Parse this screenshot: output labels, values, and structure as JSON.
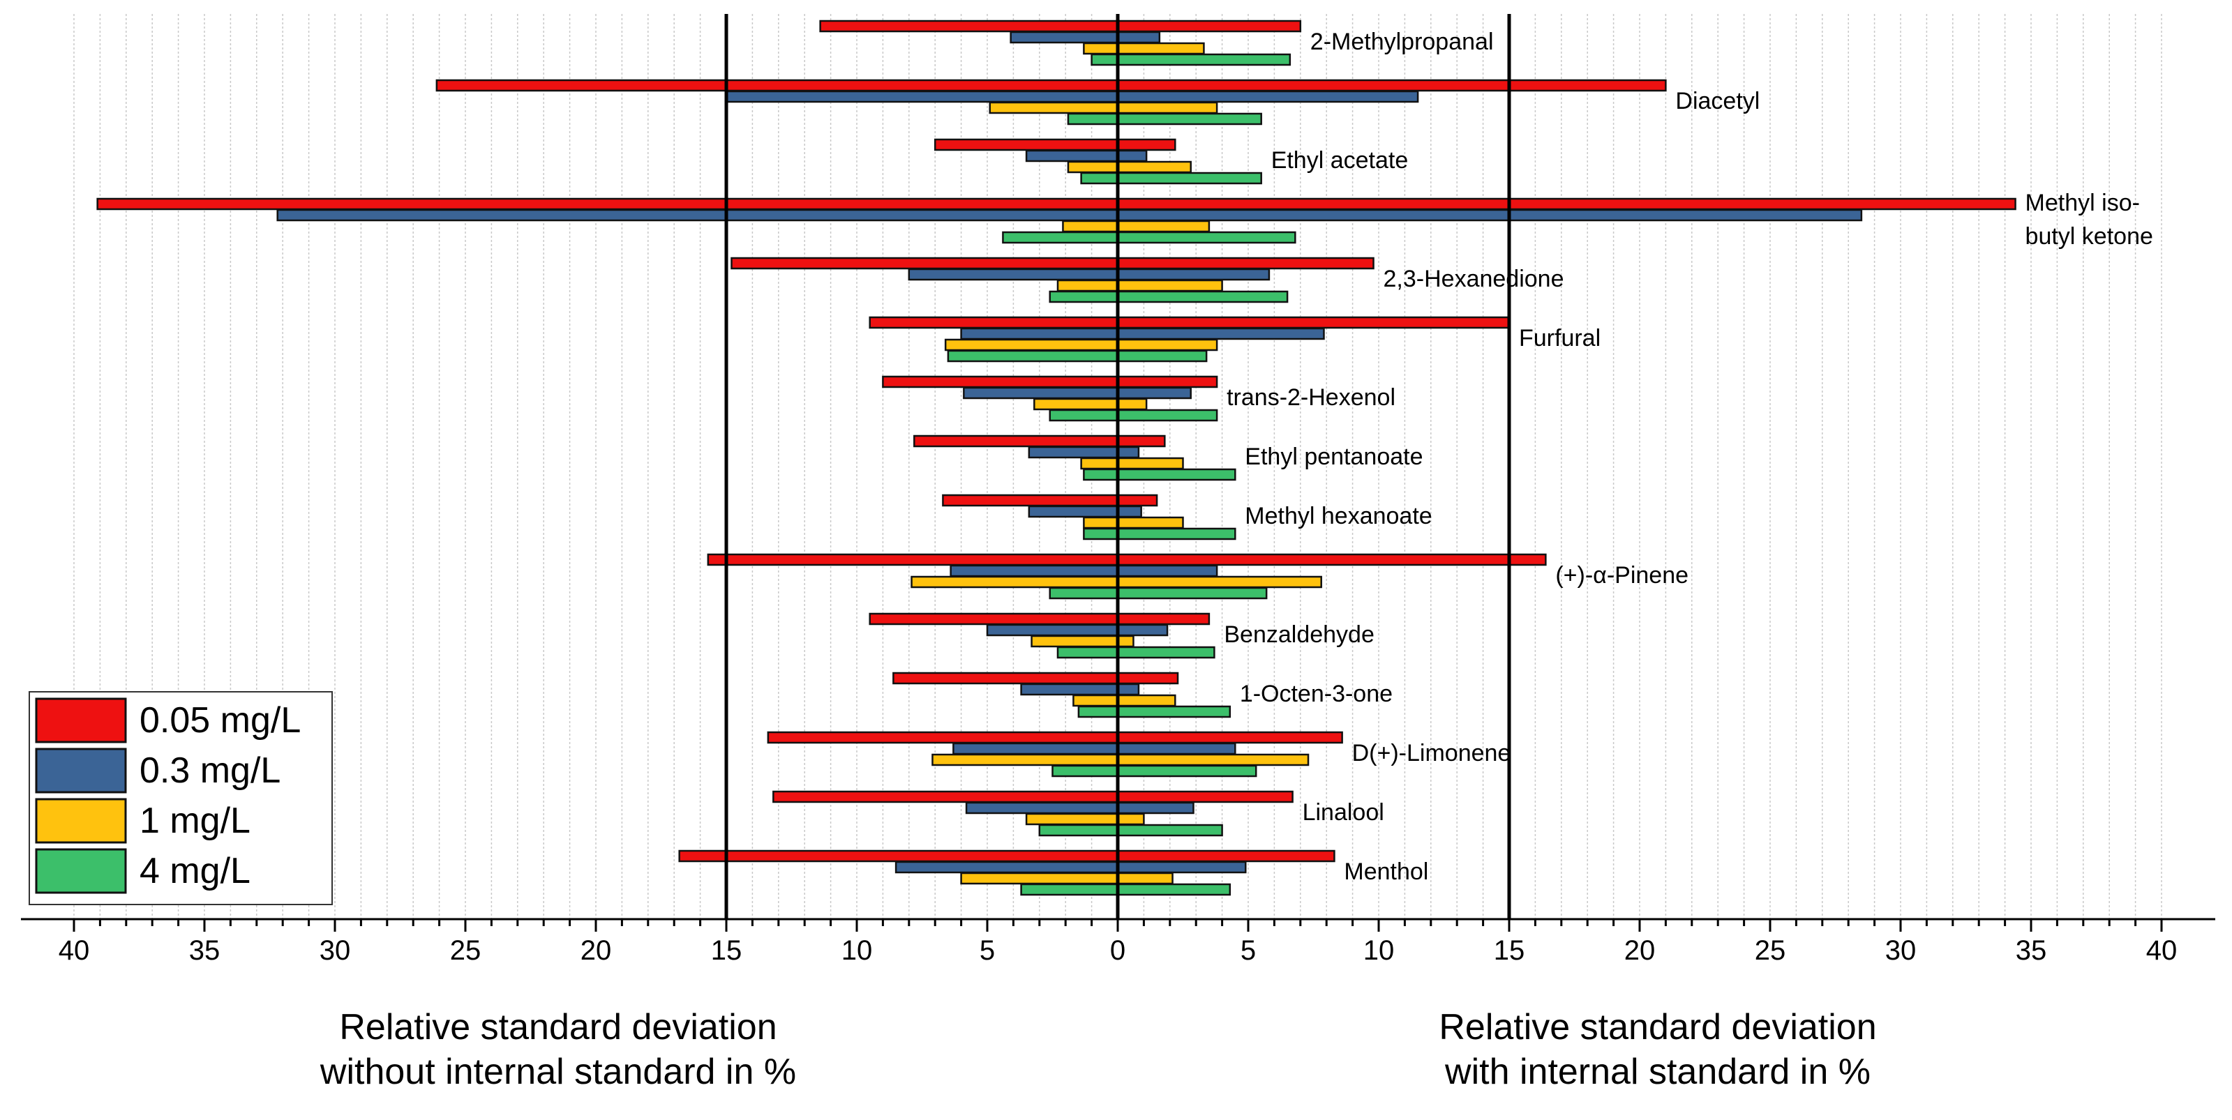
{
  "chart_data": {
    "type": "bar",
    "orientation": "horizontal-diverging",
    "xlabel_left": [
      "Relative standard deviation",
      "without internal standard in %"
    ],
    "xlabel_right": [
      "Relative standard deviation",
      "with internal standard in %"
    ],
    "xlim": [
      -40,
      40
    ],
    "x_ticks": [
      -40,
      -35,
      -30,
      -25,
      -20,
      -15,
      -10,
      -5,
      0,
      5,
      10,
      15,
      20,
      25,
      30,
      35,
      40
    ],
    "x_tick_labels": [
      "40",
      "35",
      "30",
      "25",
      "20",
      "15",
      "10",
      "5",
      "0",
      "5",
      "10",
      "15",
      "20",
      "25",
      "30",
      "35",
      "40"
    ],
    "reference_lines": [
      -15,
      0,
      15
    ],
    "grid": "vertical minor dotted",
    "legend": {
      "placement": "bottom-left",
      "entries": [
        {
          "name": "0.05 mg/L",
          "color": "#ee1111"
        },
        {
          "name": "0.3 mg/L",
          "color": "#3b6496"
        },
        {
          "name": "1 mg/L",
          "color": "#ffc20e"
        },
        {
          "name": "4 mg/L",
          "color": "#3cbf6a"
        }
      ]
    },
    "compounds": [
      {
        "label": [
          "2-Methylpropanal"
        ],
        "values": [
          {
            "left": 11.4,
            "right": 7.0
          },
          {
            "left": 4.1,
            "right": 1.6
          },
          {
            "left": 1.3,
            "right": 3.3
          },
          {
            "left": 1.0,
            "right": 6.6
          }
        ]
      },
      {
        "label": [
          "Diacetyl"
        ],
        "values": [
          {
            "left": 26.1,
            "right": 21.0
          },
          {
            "left": 15.0,
            "right": 11.5
          },
          {
            "left": 4.9,
            "right": 3.8
          },
          {
            "left": 1.9,
            "right": 5.5
          }
        ]
      },
      {
        "label": [
          "Ethyl acetate"
        ],
        "values": [
          {
            "left": 7.0,
            "right": 2.2
          },
          {
            "left": 3.5,
            "right": 1.1
          },
          {
            "left": 1.9,
            "right": 2.8
          },
          {
            "left": 1.4,
            "right": 5.5
          }
        ]
      },
      {
        "label": [
          "Methyl iso-",
          "butyl ketone"
        ],
        "values": [
          {
            "left": 39.1,
            "right": 34.4
          },
          {
            "left": 32.2,
            "right": 28.5
          },
          {
            "left": 2.1,
            "right": 3.5
          },
          {
            "left": 4.4,
            "right": 6.8
          }
        ]
      },
      {
        "label": [
          "2,3-Hexanedione"
        ],
        "values": [
          {
            "left": 14.8,
            "right": 9.8
          },
          {
            "left": 8.0,
            "right": 5.8
          },
          {
            "left": 2.3,
            "right": 4.0
          },
          {
            "left": 2.6,
            "right": 6.5
          }
        ]
      },
      {
        "label": [
          "Furfural"
        ],
        "values": [
          {
            "left": 9.5,
            "right": 15.0
          },
          {
            "left": 6.0,
            "right": 7.9
          },
          {
            "left": 6.6,
            "right": 3.8
          },
          {
            "left": 6.5,
            "right": 3.4
          }
        ]
      },
      {
        "label": [
          "trans-2-Hexenol"
        ],
        "values": [
          {
            "left": 9.0,
            "right": 3.8
          },
          {
            "left": 5.9,
            "right": 2.8
          },
          {
            "left": 3.2,
            "right": 1.1
          },
          {
            "left": 2.6,
            "right": 3.8
          }
        ]
      },
      {
        "label": [
          "Ethyl pentanoate"
        ],
        "values": [
          {
            "left": 7.8,
            "right": 1.8
          },
          {
            "left": 3.4,
            "right": 0.8
          },
          {
            "left": 1.4,
            "right": 2.5
          },
          {
            "left": 1.3,
            "right": 4.5
          }
        ]
      },
      {
        "label": [
          "Methyl hexanoate"
        ],
        "values": [
          {
            "left": 6.7,
            "right": 1.5
          },
          {
            "left": 3.4,
            "right": 0.9
          },
          {
            "left": 1.3,
            "right": 2.5
          },
          {
            "left": 1.3,
            "right": 4.5
          }
        ]
      },
      {
        "label": [
          "(+)-α-Pinene"
        ],
        "values": [
          {
            "left": 15.7,
            "right": 16.4
          },
          {
            "left": 6.4,
            "right": 3.8
          },
          {
            "left": 7.9,
            "right": 7.8
          },
          {
            "left": 2.6,
            "right": 5.7
          }
        ]
      },
      {
        "label": [
          "Benzaldehyde"
        ],
        "values": [
          {
            "left": 9.5,
            "right": 3.5
          },
          {
            "left": 5.0,
            "right": 1.9
          },
          {
            "left": 3.3,
            "right": 0.6
          },
          {
            "left": 2.3,
            "right": 3.7
          }
        ]
      },
      {
        "label": [
          "1-Octen-3-one"
        ],
        "values": [
          {
            "left": 8.6,
            "right": 2.3
          },
          {
            "left": 3.7,
            "right": 0.8
          },
          {
            "left": 1.7,
            "right": 2.2
          },
          {
            "left": 1.5,
            "right": 4.3
          }
        ]
      },
      {
        "label": [
          "D(+)-Limonene"
        ],
        "values": [
          {
            "left": 13.4,
            "right": 8.6
          },
          {
            "left": 6.3,
            "right": 4.5
          },
          {
            "left": 7.1,
            "right": 7.3
          },
          {
            "left": 2.5,
            "right": 5.3
          }
        ]
      },
      {
        "label": [
          "Linalool"
        ],
        "values": [
          {
            "left": 13.2,
            "right": 6.7
          },
          {
            "left": 5.8,
            "right": 2.9
          },
          {
            "left": 3.5,
            "right": 1.0
          },
          {
            "left": 3.0,
            "right": 4.0
          }
        ]
      },
      {
        "label": [
          "Menthol"
        ],
        "values": [
          {
            "left": 16.8,
            "right": 8.3
          },
          {
            "left": 8.5,
            "right": 4.9
          },
          {
            "left": 6.0,
            "right": 2.1
          },
          {
            "left": 3.7,
            "right": 4.3
          }
        ]
      }
    ]
  }
}
